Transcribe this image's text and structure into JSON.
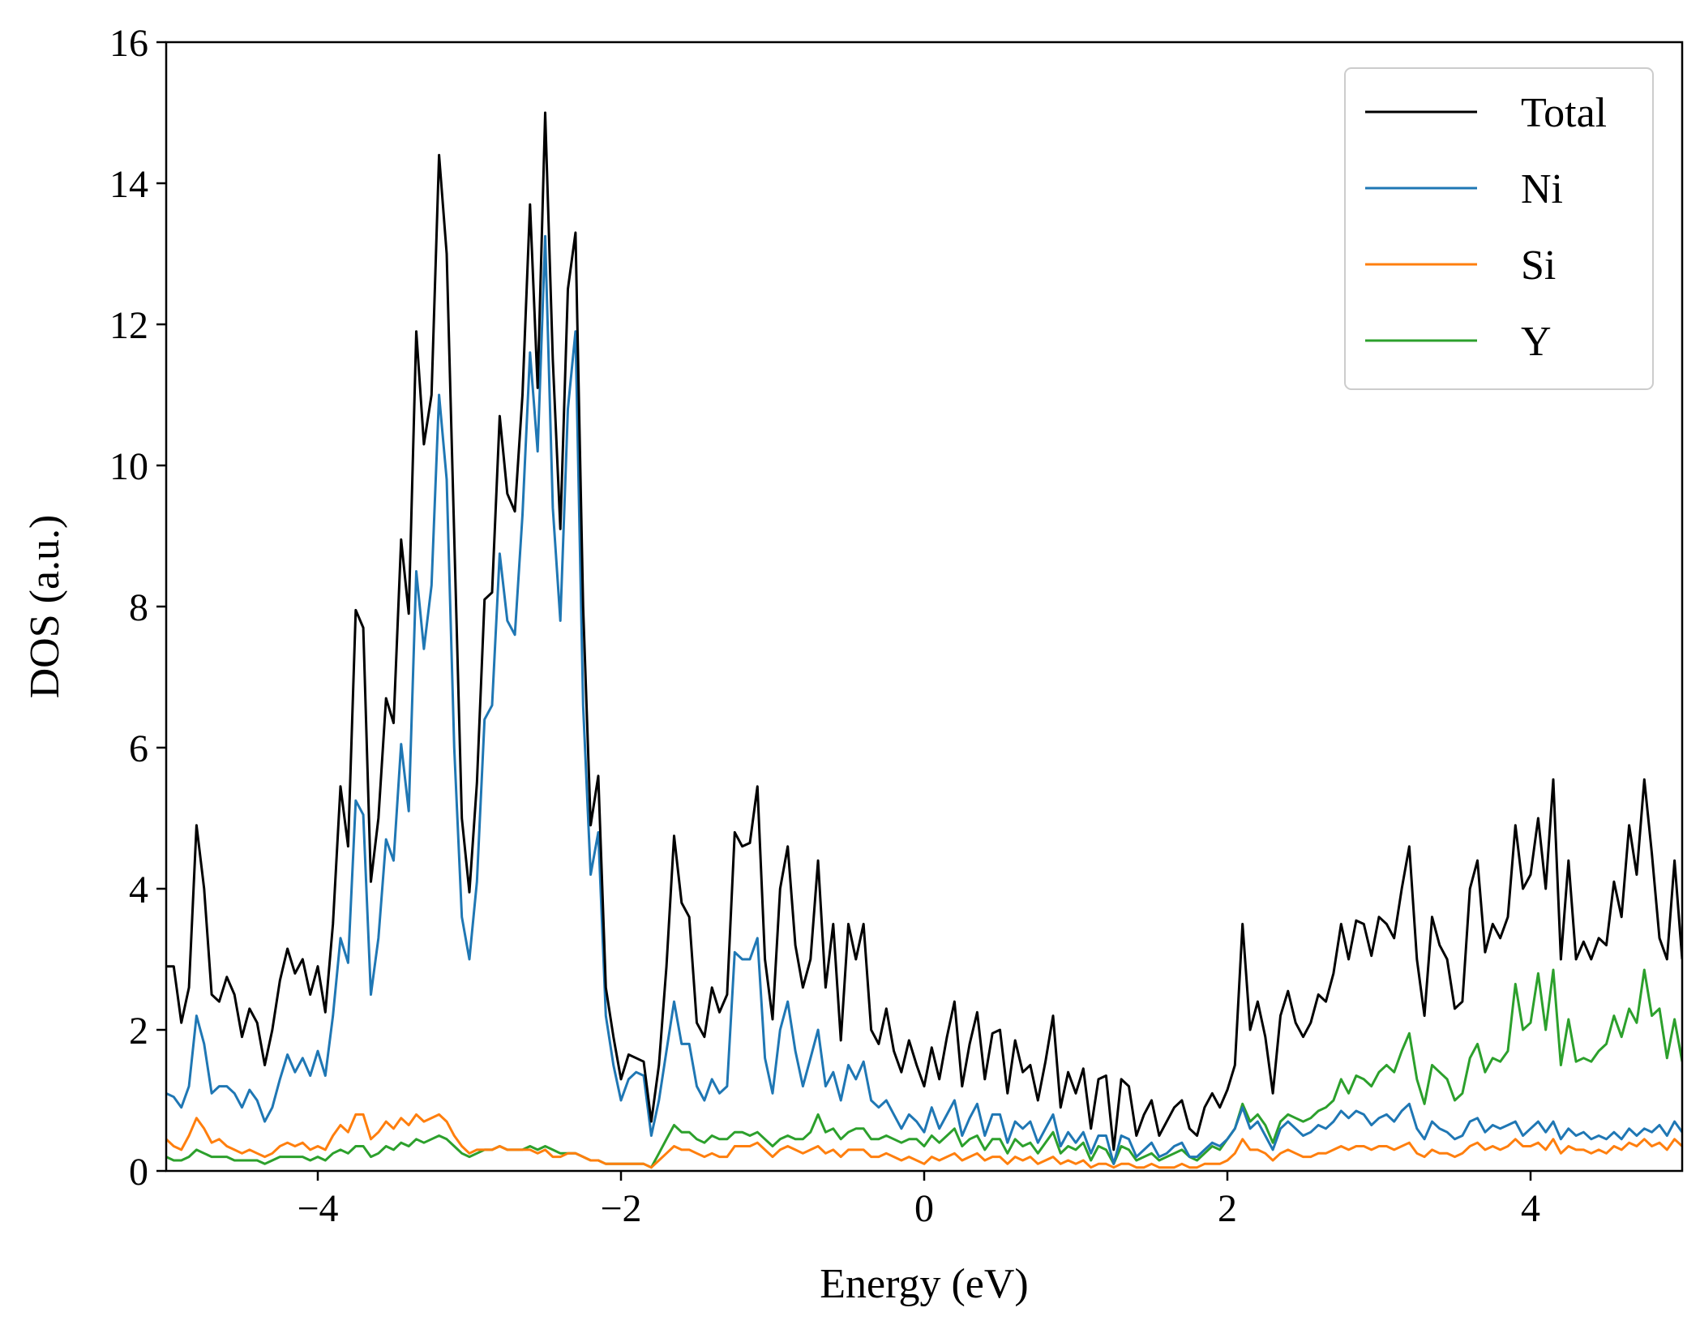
{
  "chart_data": {
    "type": "line",
    "title": "",
    "xlabel": "Energy (eV)",
    "ylabel": "DOS (a.u.)",
    "xlim": [
      -5,
      5
    ],
    "ylim": [
      0,
      16
    ],
    "xticks": [
      -4,
      -2,
      0,
      2,
      4
    ],
    "xtick_labels": [
      "−4",
      "−2",
      "0",
      "2",
      "4"
    ],
    "yticks": [
      0,
      2,
      4,
      6,
      8,
      10,
      12,
      14,
      16
    ],
    "ytick_labels": [
      "0",
      "2",
      "4",
      "6",
      "8",
      "10",
      "12",
      "14",
      "16"
    ],
    "grid": false,
    "legend_position": "top-right",
    "series": [
      {
        "name": "Total",
        "color": "#000000",
        "points": [
          [
            -5.0,
            2.9
          ],
          [
            -4.95,
            2.9
          ],
          [
            -4.9,
            2.1
          ],
          [
            -4.85,
            2.6
          ],
          [
            -4.8,
            4.9
          ],
          [
            -4.75,
            4.0
          ],
          [
            -4.7,
            2.5
          ],
          [
            -4.65,
            2.4
          ],
          [
            -4.6,
            2.75
          ],
          [
            -4.55,
            2.5
          ],
          [
            -4.5,
            1.9
          ],
          [
            -4.45,
            2.3
          ],
          [
            -4.4,
            2.1
          ],
          [
            -4.35,
            1.5
          ],
          [
            -4.3,
            2.0
          ],
          [
            -4.25,
            2.7
          ],
          [
            -4.2,
            3.15
          ],
          [
            -4.15,
            2.8
          ],
          [
            -4.1,
            3.0
          ],
          [
            -4.05,
            2.5
          ],
          [
            -4.0,
            2.9
          ],
          [
            -3.95,
            2.25
          ],
          [
            -3.9,
            3.5
          ],
          [
            -3.85,
            5.45
          ],
          [
            -3.8,
            4.6
          ],
          [
            -3.75,
            7.95
          ],
          [
            -3.7,
            7.7
          ],
          [
            -3.65,
            4.1
          ],
          [
            -3.6,
            5.0
          ],
          [
            -3.55,
            6.7
          ],
          [
            -3.5,
            6.35
          ],
          [
            -3.45,
            8.95
          ],
          [
            -3.4,
            7.9
          ],
          [
            -3.35,
            11.9
          ],
          [
            -3.3,
            10.3
          ],
          [
            -3.25,
            11.0
          ],
          [
            -3.2,
            14.4
          ],
          [
            -3.15,
            13.0
          ],
          [
            -3.1,
            9.0
          ],
          [
            -3.05,
            5.0
          ],
          [
            -3.0,
            3.95
          ],
          [
            -2.95,
            5.5
          ],
          [
            -2.9,
            8.1
          ],
          [
            -2.85,
            8.2
          ],
          [
            -2.8,
            10.7
          ],
          [
            -2.75,
            9.6
          ],
          [
            -2.7,
            9.35
          ],
          [
            -2.65,
            11.0
          ],
          [
            -2.6,
            13.7
          ],
          [
            -2.55,
            11.1
          ],
          [
            -2.5,
            15.0
          ],
          [
            -2.45,
            11.5
          ],
          [
            -2.4,
            9.1
          ],
          [
            -2.35,
            12.5
          ],
          [
            -2.3,
            13.3
          ],
          [
            -2.25,
            8.0
          ],
          [
            -2.2,
            4.9
          ],
          [
            -2.15,
            5.6
          ],
          [
            -2.1,
            2.6
          ],
          [
            -2.05,
            1.9
          ],
          [
            -2.0,
            1.3
          ],
          [
            -1.95,
            1.65
          ],
          [
            -1.9,
            1.6
          ],
          [
            -1.85,
            1.55
          ],
          [
            -1.8,
            0.7
          ],
          [
            -1.75,
            1.5
          ],
          [
            -1.7,
            2.9
          ],
          [
            -1.65,
            4.75
          ],
          [
            -1.6,
            3.8
          ],
          [
            -1.55,
            3.6
          ],
          [
            -1.5,
            2.1
          ],
          [
            -1.45,
            1.9
          ],
          [
            -1.4,
            2.6
          ],
          [
            -1.35,
            2.25
          ],
          [
            -1.3,
            2.5
          ],
          [
            -1.25,
            4.8
          ],
          [
            -1.2,
            4.6
          ],
          [
            -1.15,
            4.65
          ],
          [
            -1.1,
            5.45
          ],
          [
            -1.05,
            3.0
          ],
          [
            -1.0,
            2.15
          ],
          [
            -0.95,
            4.0
          ],
          [
            -0.9,
            4.6
          ],
          [
            -0.85,
            3.2
          ],
          [
            -0.8,
            2.6
          ],
          [
            -0.75,
            3.0
          ],
          [
            -0.7,
            4.4
          ],
          [
            -0.65,
            2.6
          ],
          [
            -0.6,
            3.5
          ],
          [
            -0.55,
            1.85
          ],
          [
            -0.5,
            3.5
          ],
          [
            -0.45,
            3.0
          ],
          [
            -0.4,
            3.5
          ],
          [
            -0.35,
            2.0
          ],
          [
            -0.3,
            1.8
          ],
          [
            -0.25,
            2.3
          ],
          [
            -0.2,
            1.7
          ],
          [
            -0.15,
            1.4
          ],
          [
            -0.1,
            1.85
          ],
          [
            -0.05,
            1.5
          ],
          [
            0.0,
            1.2
          ],
          [
            0.05,
            1.75
          ],
          [
            0.1,
            1.3
          ],
          [
            0.15,
            1.9
          ],
          [
            0.2,
            2.4
          ],
          [
            0.25,
            1.2
          ],
          [
            0.3,
            1.8
          ],
          [
            0.35,
            2.25
          ],
          [
            0.4,
            1.3
          ],
          [
            0.45,
            1.95
          ],
          [
            0.5,
            2.0
          ],
          [
            0.55,
            1.1
          ],
          [
            0.6,
            1.85
          ],
          [
            0.65,
            1.4
          ],
          [
            0.7,
            1.5
          ],
          [
            0.75,
            1.0
          ],
          [
            0.8,
            1.55
          ],
          [
            0.85,
            2.2
          ],
          [
            0.9,
            0.9
          ],
          [
            0.95,
            1.4
          ],
          [
            1.0,
            1.1
          ],
          [
            1.05,
            1.45
          ],
          [
            1.1,
            0.6
          ],
          [
            1.15,
            1.3
          ],
          [
            1.2,
            1.35
          ],
          [
            1.25,
            0.3
          ],
          [
            1.3,
            1.3
          ],
          [
            1.35,
            1.2
          ],
          [
            1.4,
            0.5
          ],
          [
            1.45,
            0.8
          ],
          [
            1.5,
            1.0
          ],
          [
            1.55,
            0.5
          ],
          [
            1.6,
            0.7
          ],
          [
            1.65,
            0.9
          ],
          [
            1.7,
            1.0
          ],
          [
            1.75,
            0.6
          ],
          [
            1.8,
            0.5
          ],
          [
            1.85,
            0.9
          ],
          [
            1.9,
            1.1
          ],
          [
            1.95,
            0.9
          ],
          [
            2.0,
            1.15
          ],
          [
            2.05,
            1.5
          ],
          [
            2.1,
            3.5
          ],
          [
            2.15,
            2.0
          ],
          [
            2.2,
            2.4
          ],
          [
            2.25,
            1.9
          ],
          [
            2.3,
            1.1
          ],
          [
            2.35,
            2.2
          ],
          [
            2.4,
            2.55
          ],
          [
            2.45,
            2.1
          ],
          [
            2.5,
            1.9
          ],
          [
            2.55,
            2.1
          ],
          [
            2.6,
            2.5
          ],
          [
            2.65,
            2.4
          ],
          [
            2.7,
            2.8
          ],
          [
            2.75,
            3.5
          ],
          [
            2.8,
            3.0
          ],
          [
            2.85,
            3.55
          ],
          [
            2.9,
            3.5
          ],
          [
            2.95,
            3.05
          ],
          [
            3.0,
            3.6
          ],
          [
            3.05,
            3.5
          ],
          [
            3.1,
            3.3
          ],
          [
            3.15,
            4.0
          ],
          [
            3.2,
            4.6
          ],
          [
            3.25,
            3.0
          ],
          [
            3.3,
            2.2
          ],
          [
            3.35,
            3.6
          ],
          [
            3.4,
            3.2
          ],
          [
            3.45,
            3.0
          ],
          [
            3.5,
            2.3
          ],
          [
            3.55,
            2.4
          ],
          [
            3.6,
            4.0
          ],
          [
            3.65,
            4.4
          ],
          [
            3.7,
            3.1
          ],
          [
            3.75,
            3.5
          ],
          [
            3.8,
            3.3
          ],
          [
            3.85,
            3.6
          ],
          [
            3.9,
            4.9
          ],
          [
            3.95,
            4.0
          ],
          [
            4.0,
            4.2
          ],
          [
            4.05,
            5.0
          ],
          [
            4.1,
            4.0
          ],
          [
            4.15,
            5.55
          ],
          [
            4.2,
            3.0
          ],
          [
            4.25,
            4.4
          ],
          [
            4.3,
            3.0
          ],
          [
            4.35,
            3.25
          ],
          [
            4.4,
            3.0
          ]
        ],
        "legend_label": "Total"
      }
    ]
  },
  "legend": {
    "items": [
      {
        "label": "Total",
        "color": "#000000"
      },
      {
        "label": "Ni",
        "color": "#1f77b4"
      },
      {
        "label": "Si",
        "color": "#ff7f0e"
      },
      {
        "label": "Y",
        "color": "#2ca02c"
      }
    ]
  }
}
